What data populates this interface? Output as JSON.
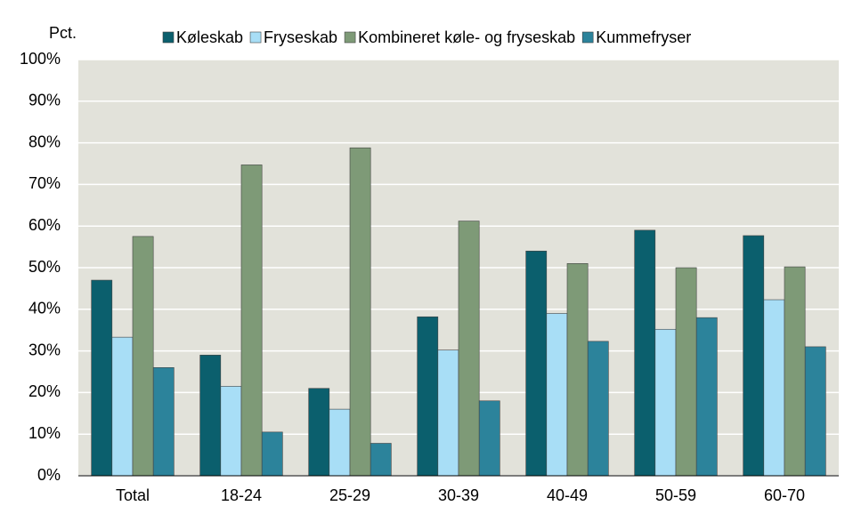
{
  "chart_data": {
    "type": "bar",
    "y_label": "Pct.",
    "categories": [
      "Total",
      "18-24",
      "25-29",
      "30-39",
      "40-49",
      "50-59",
      "60-70"
    ],
    "series": [
      {
        "name": "Køleskab",
        "color": "#0b5f6d",
        "values": [
          47,
          29,
          21,
          38.2,
          54,
          59,
          57.7
        ]
      },
      {
        "name": "Fryseskab",
        "color": "#a8def6",
        "values": [
          33.3,
          21.5,
          16,
          30.2,
          39,
          35.2,
          42.3
        ]
      },
      {
        "name": "Kombineret køle- og fryseskab",
        "color": "#7e9a77",
        "values": [
          57.5,
          74.7,
          78.8,
          61.2,
          51,
          50,
          50.2
        ]
      },
      {
        "name": "Kummefryser",
        "color": "#2c839b",
        "values": [
          26,
          10.5,
          7.8,
          18,
          32.3,
          38,
          31
        ]
      }
    ],
    "ylim": [
      0,
      100
    ],
    "yticks": [
      {
        "value": 0,
        "label": "0%"
      },
      {
        "value": 10,
        "label": "10%"
      },
      {
        "value": 20,
        "label": "20%"
      },
      {
        "value": 30,
        "label": "30%"
      },
      {
        "value": 40,
        "label": "40%"
      },
      {
        "value": 50,
        "label": "50%"
      },
      {
        "value": 60,
        "label": "60%"
      },
      {
        "value": 70,
        "label": "70%"
      },
      {
        "value": 80,
        "label": "80%"
      },
      {
        "value": 90,
        "label": "90%"
      },
      {
        "value": 100,
        "label": "100%"
      }
    ],
    "grid": true,
    "legend": "top",
    "plot_background": "#e2e2da"
  }
}
